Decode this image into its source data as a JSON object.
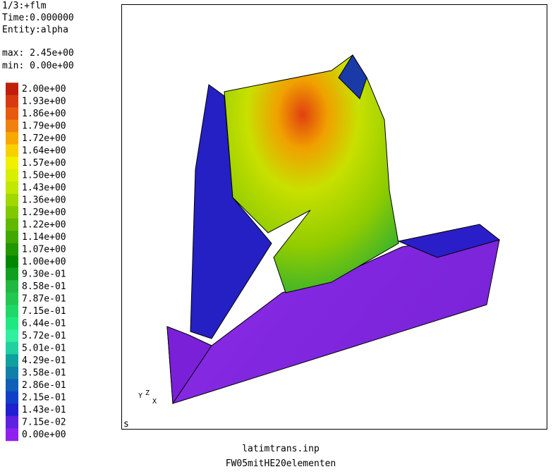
{
  "info": {
    "lines": [
      "1/3:+flm",
      "Time:0.000000",
      "Entity:alpha"
    ],
    "max": "max: 2.45e+00",
    "min": "min: 0.00e+00"
  },
  "legend": {
    "entries": [
      {
        "label": "2.00e+00",
        "color": "#c0200a"
      },
      {
        "label": "1.93e+00",
        "color": "#d83a10"
      },
      {
        "label": "1.86e+00",
        "color": "#e85a10"
      },
      {
        "label": "1.79e+00",
        "color": "#f08010"
      },
      {
        "label": "1.72e+00",
        "color": "#f8a800"
      },
      {
        "label": "1.64e+00",
        "color": "#f8d000"
      },
      {
        "label": "1.57e+00",
        "color": "#f0f000"
      },
      {
        "label": "1.50e+00",
        "color": "#d8f000"
      },
      {
        "label": "1.43e+00",
        "color": "#c0e800"
      },
      {
        "label": "1.36e+00",
        "color": "#a0d800"
      },
      {
        "label": "1.29e+00",
        "color": "#80c800"
      },
      {
        "label": "1.22e+00",
        "color": "#60b800"
      },
      {
        "label": "1.14e+00",
        "color": "#40a800"
      },
      {
        "label": "1.07e+00",
        "color": "#209800"
      },
      {
        "label": "1.00e+00",
        "color": "#008800"
      },
      {
        "label": "9.30e-01",
        "color": "#10a020"
      },
      {
        "label": "8.58e-01",
        "color": "#20b840"
      },
      {
        "label": "7.87e-01",
        "color": "#20c850"
      },
      {
        "label": "7.15e-01",
        "color": "#20d868"
      },
      {
        "label": "6.44e-01",
        "color": "#20e880"
      },
      {
        "label": "5.72e-01",
        "color": "#30f0a0"
      },
      {
        "label": "5.01e-01",
        "color": "#20d0a0"
      },
      {
        "label": "4.29e-01",
        "color": "#10a0a0"
      },
      {
        "label": "3.58e-01",
        "color": "#1080a8"
      },
      {
        "label": "2.86e-01",
        "color": "#1060b8"
      },
      {
        "label": "2.15e-01",
        "color": "#1040c8"
      },
      {
        "label": "1.43e-01",
        "color": "#2020d0"
      },
      {
        "label": "7.15e-02",
        "color": "#6020e0"
      },
      {
        "label": "0.00e+00",
        "color": "#9020f0"
      }
    ]
  },
  "viewport": {
    "corner": "s",
    "triad": [
      "Y",
      "Z",
      "X"
    ]
  },
  "footer": {
    "file": "latimtrans.inp",
    "model": "FW05mitHE20elementen"
  }
}
